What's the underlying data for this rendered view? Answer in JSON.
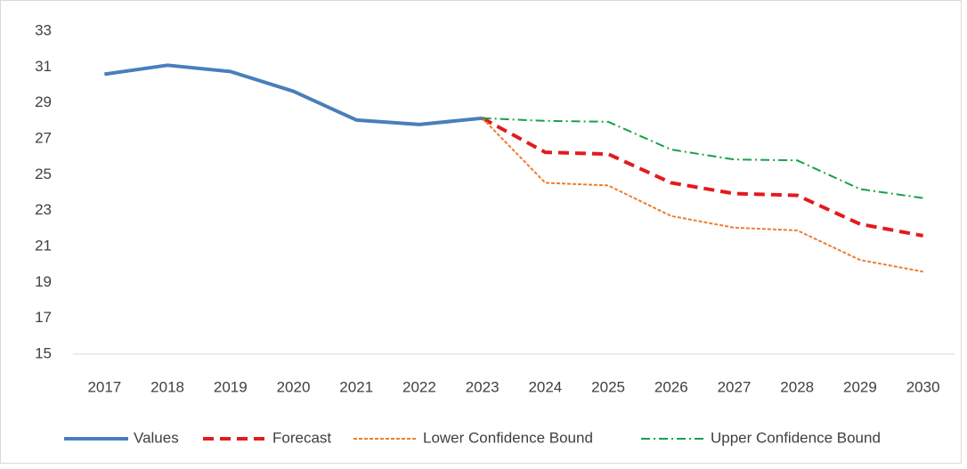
{
  "chart_data": {
    "type": "line",
    "categories": [
      "2017",
      "2018",
      "2019",
      "2020",
      "2021",
      "2022",
      "2023",
      "2024",
      "2025",
      "2026",
      "2027",
      "2028",
      "2029",
      "2030"
    ],
    "series": [
      {
        "name": "Values",
        "color": "#4a7ebb",
        "dash": "solid",
        "values": [
          30.6,
          31.1,
          30.75,
          29.65,
          28.05,
          27.8,
          28.15,
          null,
          null,
          null,
          null,
          null,
          null,
          null
        ]
      },
      {
        "name": "Forecast",
        "color": "#e41a1c",
        "dash": "dashed",
        "values": [
          null,
          null,
          null,
          null,
          null,
          null,
          28.15,
          26.25,
          26.15,
          24.55,
          23.95,
          23.85,
          22.25,
          21.6
        ]
      },
      {
        "name": "Lower Confidence Bound",
        "color": "#ed7d31",
        "dash": "dotted",
        "values": [
          null,
          null,
          null,
          null,
          null,
          null,
          28.15,
          24.55,
          24.4,
          22.7,
          22.05,
          21.9,
          20.25,
          19.6
        ]
      },
      {
        "name": "Upper Confidence Bound",
        "color": "#18a04a",
        "dash": "dashdot",
        "values": [
          null,
          null,
          null,
          null,
          null,
          null,
          28.15,
          28.0,
          27.95,
          26.4,
          25.85,
          25.8,
          24.2,
          23.7
        ]
      }
    ],
    "ylim": [
      15,
      33
    ],
    "yticks": [
      15,
      17,
      19,
      21,
      23,
      25,
      27,
      29,
      31,
      33
    ],
    "grid": false,
    "legend": "bottom"
  }
}
